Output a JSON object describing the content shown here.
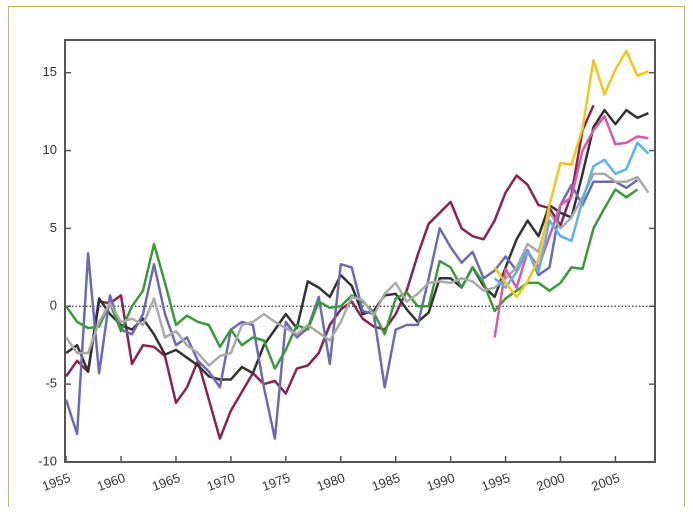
{
  "chart_data": {
    "type": "line",
    "x": [
      1955,
      1956,
      1957,
      1958,
      1959,
      1960,
      1961,
      1962,
      1963,
      1964,
      1965,
      1966,
      1967,
      1968,
      1969,
      1970,
      1971,
      1972,
      1973,
      1974,
      1975,
      1976,
      1977,
      1978,
      1979,
      1980,
      1981,
      1982,
      1983,
      1984,
      1985,
      1986,
      1987,
      1988,
      1989,
      1990,
      1991,
      1992,
      1993,
      1994,
      1995,
      1996,
      1997,
      1998,
      1999,
      2000,
      2001,
      2002,
      2003,
      2004,
      2005,
      2006,
      2007,
      2008
    ],
    "series": [
      {
        "color": "#8b2252",
        "values": [
          -4.5,
          -3.5,
          -4.2,
          0.3,
          0.2,
          0.7,
          -3.7,
          -2.5,
          -2.6,
          -3.2,
          -6.2,
          -5.2,
          -3.5,
          -6,
          -8.5,
          -6.7,
          -5.5,
          -4.3,
          -5,
          -4.8,
          -5.6,
          -4,
          -3.8,
          -3,
          -1.2,
          -0.2,
          0.3,
          -0.8,
          -1.3,
          -1.5,
          -0.5,
          1,
          3.3,
          5.3,
          6,
          6.7,
          5,
          4.5,
          4.3,
          5.5,
          7.3,
          8.4,
          7.8,
          6.5,
          6.3,
          5.2,
          7.2,
          11.3,
          12.9,
          null,
          null,
          null,
          null,
          null
        ]
      },
      {
        "color": "#333333",
        "values": [
          -3,
          -2.5,
          -4.2,
          0.5,
          -0.5,
          -1.2,
          -1.5,
          -0.8,
          -1.8,
          -3.1,
          -2.8,
          -3.3,
          -3.8,
          -4.5,
          -4.7,
          -4.7,
          -3.9,
          -4.3,
          -2.5,
          -1.5,
          -0.5,
          -1.4,
          1.6,
          1.2,
          0.6,
          2,
          1.3,
          -0.5,
          -0.3,
          0.7,
          0.8,
          -0.2,
          -1,
          -0.4,
          1.8,
          1.8,
          1.2,
          2.5,
          1.3,
          0.6,
          2.5,
          4.3,
          5.5,
          4.5,
          6.5,
          6,
          5.7,
          8.5,
          11.5,
          12.6,
          11.7,
          12.6,
          12.1,
          12.4
        ]
      },
      {
        "color": "#6b6bb5",
        "values": [
          -6,
          -8.2,
          3.4,
          -4.3,
          0.7,
          -1.5,
          -1.8,
          -0.5,
          2.7,
          -0.5,
          -2.5,
          -2,
          -3.5,
          -4.2,
          -5.2,
          -1.5,
          -1,
          -1.2,
          -5.2,
          -8.5,
          -1,
          -2,
          -1.4,
          0.6,
          -3.7,
          2.7,
          2.5,
          -0.3,
          -0.5,
          -5.2,
          -1.5,
          -1.2,
          -1.2,
          1.8,
          5,
          3.8,
          2.8,
          3.5,
          1.8,
          2.3,
          3.2,
          2.3,
          3.6,
          2,
          2.5,
          6.5,
          7.8,
          6.5,
          8,
          8,
          8,
          7.6,
          8.1,
          null
        ]
      },
      {
        "color": "#3a9a3a",
        "values": [
          0,
          -1,
          -1.4,
          -1.3,
          0.2,
          -1.6,
          0,
          1,
          4,
          1.5,
          -1.2,
          -0.6,
          -1,
          -1.2,
          -2.6,
          -1.5,
          -2.5,
          -2,
          -2.2,
          -4,
          -2.8,
          -1.2,
          -1.5,
          0.3,
          -0.1,
          0,
          0.7,
          0.3,
          -0.4,
          -1.8,
          0.5,
          0.9,
          0,
          0,
          2.9,
          2.5,
          1.2,
          2.5,
          1.5,
          -0.3,
          0.5,
          1,
          1.5,
          1.5,
          1,
          1.5,
          2.5,
          2.4,
          5,
          6.3,
          7.5,
          7,
          7.5,
          null
        ]
      },
      {
        "color": "#aaaaaa",
        "values": [
          -2,
          -3,
          -3,
          -1,
          0.2,
          -1,
          -0.8,
          -1.2,
          0.5,
          -2,
          -1.6,
          -2.5,
          -3,
          -3.8,
          -3.2,
          -3,
          -1.2,
          -1,
          -0.5,
          -1,
          -1.4,
          -1.8,
          -1.2,
          -1.7,
          -2.2,
          -1,
          0.6,
          0.4,
          -0.6,
          0.8,
          1.5,
          0.3,
          0.8,
          1.5,
          1.6,
          1.5,
          1.8,
          1.6,
          1,
          1.2,
          1.8,
          2.5,
          4,
          3.5,
          6,
          5,
          5.7,
          7,
          8.5,
          8.5,
          8,
          8,
          8.3,
          7.3
        ]
      },
      {
        "color": "#d65aa8",
        "values": [
          null,
          null,
          null,
          null,
          null,
          null,
          null,
          null,
          null,
          null,
          null,
          null,
          null,
          null,
          null,
          null,
          null,
          null,
          null,
          null,
          null,
          null,
          null,
          null,
          null,
          null,
          null,
          null,
          null,
          null,
          null,
          null,
          null,
          null,
          null,
          null,
          null,
          null,
          null,
          -2,
          2.4,
          1.2,
          3.5,
          2.5,
          4.5,
          6.5,
          7,
          10,
          11.3,
          12.2,
          10.4,
          10.5,
          10.9,
          10.8
        ]
      },
      {
        "color": "#5ab4e6",
        "values": [
          null,
          null,
          null,
          null,
          null,
          null,
          null,
          null,
          null,
          null,
          null,
          null,
          null,
          null,
          null,
          null,
          null,
          null,
          null,
          null,
          null,
          null,
          null,
          null,
          null,
          null,
          null,
          null,
          null,
          null,
          null,
          null,
          null,
          null,
          null,
          null,
          null,
          null,
          null,
          1.8,
          1.2,
          2.2,
          3.5,
          2.2,
          5.5,
          4.5,
          4.2,
          6.8,
          9,
          9.4,
          8.5,
          8.8,
          10.5,
          9.8
        ]
      },
      {
        "color": "#f5c518",
        "values": [
          null,
          null,
          null,
          null,
          null,
          null,
          null,
          null,
          null,
          null,
          null,
          null,
          null,
          null,
          null,
          null,
          null,
          null,
          null,
          null,
          null,
          null,
          null,
          null,
          null,
          null,
          null,
          null,
          null,
          null,
          null,
          null,
          null,
          null,
          null,
          null,
          null,
          null,
          null,
          2.5,
          1.5,
          0.6,
          1.6,
          3,
          6.5,
          9.2,
          9.1,
          11.4,
          15.8,
          13.6,
          15.2,
          16.4,
          14.8,
          15.1
        ]
      }
    ],
    "xlim": [
      1954.9,
      2008.6
    ],
    "xticks": [
      1955,
      1960,
      1965,
      1970,
      1975,
      1980,
      1985,
      1990,
      1995,
      2000,
      2005
    ],
    "ylim": [
      -10,
      17.1
    ],
    "yticks": [
      -10,
      -5,
      0,
      5,
      10,
      15
    ]
  }
}
